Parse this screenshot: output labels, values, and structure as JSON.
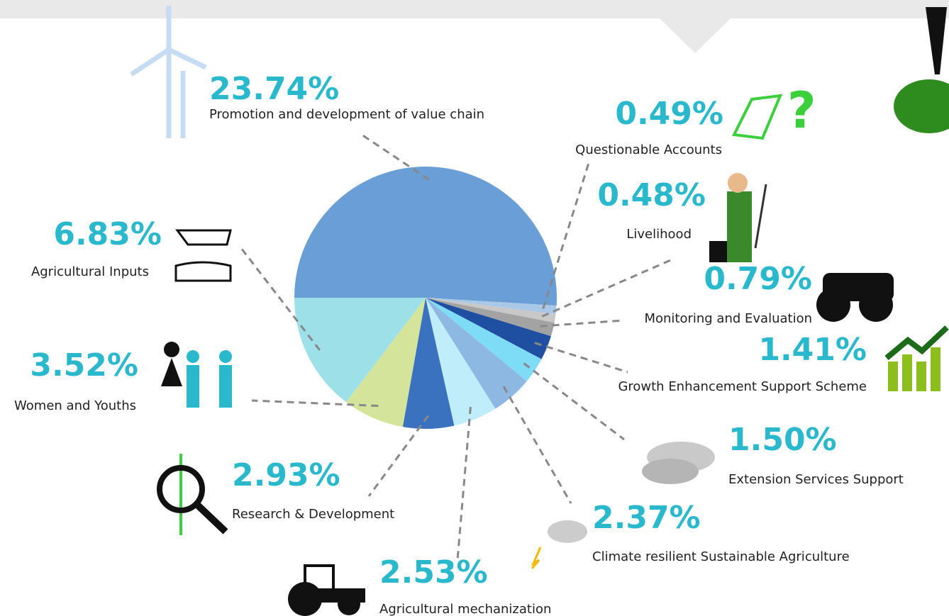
{
  "chart_data": {
    "type": "pie",
    "categories": [
      "Promotion and development of value chain",
      "Questionable Accounts",
      "Livelihood",
      "Monitoring and Evaluation",
      "Growth Enhancement Support Scheme",
      "Extension Services Support",
      "Climate resilient Sustainable Agriculture",
      "Agricultural mechanization",
      "Research & Development",
      "Women and Youths",
      "Agricultural Inputs"
    ],
    "values": [
      23.74,
      0.49,
      0.48,
      0.79,
      1.41,
      1.5,
      2.37,
      2.53,
      2.93,
      3.52,
      6.83
    ],
    "value_labels": [
      "23.74%",
      "0.49%",
      "0.48%",
      "0.79%",
      "1.41%",
      "1.50%",
      "2.37%",
      "2.53%",
      "2.93%",
      "3.52%",
      "6.83%"
    ],
    "colors": [
      "#6a9ed6",
      "#a9c8e8",
      "#c8c8c8",
      "#a3a3a3",
      "#1f4fa0",
      "#7fdcf7",
      "#8db8e2",
      "#bfeefa",
      "#3b72c0",
      "#d4e49a",
      "#9ee0e8"
    ]
  }
}
